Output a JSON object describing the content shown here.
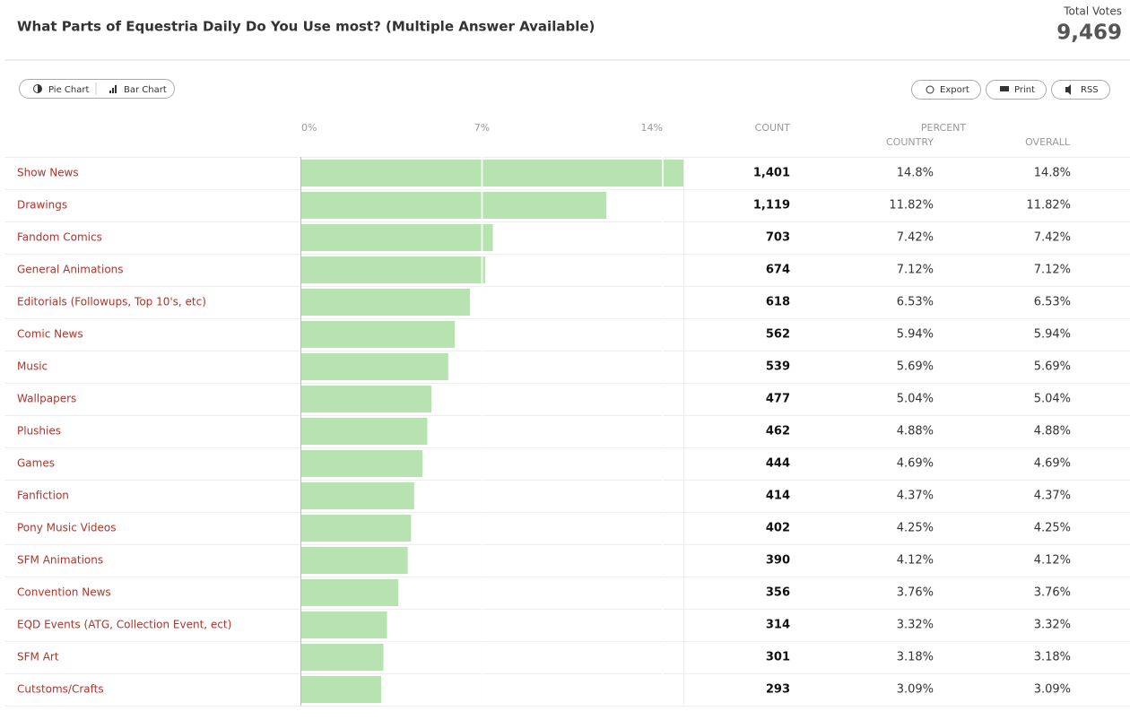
{
  "title": "What Parts of Equestria Daily Do You Use most? (Multiple Answer Available)",
  "total_votes_label": "Total Votes",
  "total_votes": "9,469",
  "view_buttons": [
    "Pie Chart",
    "Bar Chart"
  ],
  "action_buttons": [
    "Export",
    "Print",
    "RSS"
  ],
  "columns": {
    "count": "COUNT",
    "percent": "PERCENT",
    "country": "COUNTRY",
    "overall": "OVERALL"
  },
  "chart_data": {
    "type": "bar",
    "orientation": "horizontal",
    "color": "#b6e3af",
    "categories": [
      "Show News",
      "Drawings",
      "Fandom Comics",
      "General Animations",
      "Editorials (Followups, Top 10's, etc)",
      "Comic News",
      "Music",
      "Wallpapers",
      "Plushies",
      "Games",
      "Fanfiction",
      "Pony Music Videos",
      "SFM Animations",
      "Convention News",
      "EQD Events (ATG, Collection Event, ect)",
      "SFM Art",
      "Cutstoms/Crafts"
    ],
    "values": [
      14.8,
      11.82,
      7.42,
      7.12,
      6.53,
      5.94,
      5.69,
      5.04,
      4.88,
      4.69,
      4.37,
      4.25,
      4.12,
      3.76,
      3.32,
      3.18,
      3.09
    ],
    "value_labels": [
      "14.8%",
      "11.82%",
      "7.42%",
      "7.12%",
      "6.53%",
      "5.94%",
      "5.69%",
      "5.04%",
      "4.88%",
      "4.69%",
      "4.37%",
      "4.25%",
      "4.12%",
      "3.76%",
      "3.32%",
      "3.18%",
      "3.09%"
    ],
    "overall_labels": [
      "14.8%",
      "11.82%",
      "7.42%",
      "7.12%",
      "6.53%",
      "5.94%",
      "5.69%",
      "5.04%",
      "4.88%",
      "4.69%",
      "4.37%",
      "4.25%",
      "4.12%",
      "3.76%",
      "3.32%",
      "3.18%",
      "3.09%"
    ],
    "counts": [
      "1,401",
      "1,119",
      "703",
      "674",
      "618",
      "562",
      "539",
      "477",
      "462",
      "444",
      "414",
      "402",
      "390",
      "356",
      "314",
      "301",
      "293"
    ],
    "xlim": [
      0,
      14.8
    ],
    "xticks": [
      {
        "value": 0,
        "label": "0%"
      },
      {
        "value": 7,
        "label": "7%"
      },
      {
        "value": 14,
        "label": "14%"
      }
    ],
    "grid": true
  }
}
